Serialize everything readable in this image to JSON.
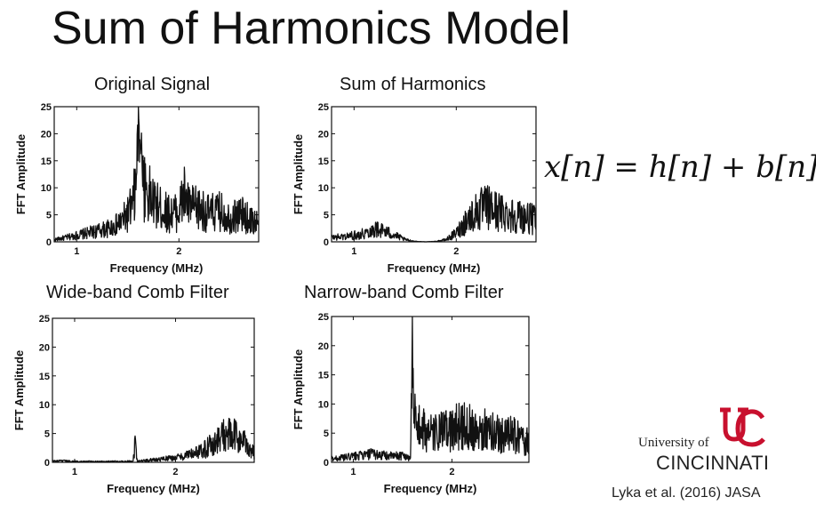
{
  "slide": {
    "title": "Sum of Harmonics Model",
    "equation": {
      "lhs": "x[n]",
      "op1": "=",
      "t1": "h[n]",
      "op2": "+",
      "t2": "b[n]"
    },
    "logo": {
      "university_of": "University of",
      "name": "CINCINNATI",
      "color": "#c8102e"
    },
    "citation": "Lyka et al. (2016) JASA"
  },
  "chart_data": [
    {
      "type": "line",
      "title": "Original Signal",
      "xlabel": "Frequency (MHz)",
      "ylabel": "FFT Amplitude",
      "xlim": [
        0.78,
        2.78
      ],
      "ylim": [
        0,
        25
      ],
      "xticks": [
        1,
        2
      ],
      "yticks": [
        0,
        5,
        10,
        15,
        20,
        25
      ],
      "grid": false,
      "series": [
        {
          "x": [
            0.78,
            0.9,
            1.0,
            1.1,
            1.2,
            1.3,
            1.4,
            1.45,
            1.5,
            1.55,
            1.58,
            1.6,
            1.62,
            1.64,
            1.66,
            1.7,
            1.75,
            1.8,
            1.9,
            2.0,
            2.05,
            2.1,
            2.2,
            2.3,
            2.4,
            2.5,
            2.6,
            2.7,
            2.78
          ],
          "y": [
            0.5,
            1,
            1.5,
            2,
            2.5,
            3,
            4,
            5,
            6.5,
            8.5,
            13,
            25,
            25,
            20,
            14,
            11,
            9,
            8,
            6.5,
            7,
            11,
            8,
            7.5,
            6.5,
            7,
            5.5,
            6.5,
            5,
            4.5
          ]
        }
      ]
    },
    {
      "type": "line",
      "title": "Sum of Harmonics",
      "xlabel": "Frequency (MHz)",
      "ylabel": "FFT Amplitude",
      "xlim": [
        0.78,
        2.78
      ],
      "ylim": [
        0,
        25
      ],
      "xticks": [
        1,
        2
      ],
      "yticks": [
        0,
        5,
        10,
        15,
        20,
        25
      ],
      "grid": false,
      "series": [
        {
          "x": [
            0.78,
            0.9,
            1.0,
            1.1,
            1.2,
            1.3,
            1.4,
            1.5,
            1.6,
            1.7,
            1.8,
            1.9,
            2.0,
            2.1,
            2.2,
            2.3,
            2.4,
            2.5,
            2.6,
            2.7,
            2.78
          ],
          "y": [
            1,
            1.2,
            1.5,
            2,
            3,
            2.5,
            1.5,
            0.5,
            0.1,
            0,
            0.1,
            0.5,
            2,
            5,
            7,
            8,
            7,
            6.5,
            6,
            5.5,
            5
          ]
        }
      ]
    },
    {
      "type": "line",
      "title": "Wide-band Comb Filter",
      "xlabel": "Frequency (MHz)",
      "ylabel": "FFT Amplitude",
      "xlim": [
        0.78,
        2.78
      ],
      "ylim": [
        0,
        25
      ],
      "xticks": [
        1,
        2
      ],
      "yticks": [
        0,
        5,
        10,
        15,
        20,
        25
      ],
      "grid": false,
      "series": [
        {
          "x": [
            0.78,
            0.9,
            1.0,
            1.2,
            1.4,
            1.5,
            1.58,
            1.6,
            1.62,
            1.7,
            1.8,
            1.9,
            2.0,
            2.1,
            2.2,
            2.3,
            2.4,
            2.5,
            2.6,
            2.7,
            2.78
          ],
          "y": [
            0.3,
            0.3,
            0.2,
            0.2,
            0.2,
            0.2,
            0.3,
            4.8,
            0.3,
            0.4,
            0.6,
            0.8,
            1,
            1.5,
            2,
            3,
            4.5,
            6,
            5.5,
            4,
            2
          ]
        }
      ]
    },
    {
      "type": "line",
      "title": "Narrow-band Comb Filter",
      "xlabel": "Frequency (MHz)",
      "ylabel": "FFT Amplitude",
      "xlim": [
        0.78,
        2.78
      ],
      "ylim": [
        0,
        25
      ],
      "xticks": [
        1,
        2
      ],
      "yticks": [
        0,
        5,
        10,
        15,
        20,
        25
      ],
      "grid": false,
      "series": [
        {
          "x": [
            0.78,
            0.9,
            1.0,
            1.1,
            1.2,
            1.3,
            1.4,
            1.5,
            1.58,
            1.6,
            1.61,
            1.62,
            1.64,
            1.7,
            1.8,
            1.9,
            2.0,
            2.1,
            2.2,
            2.3,
            2.4,
            2.5,
            2.6,
            2.7,
            2.78
          ],
          "y": [
            0.8,
            1,
            1.3,
            1.5,
            1.8,
            1.5,
            1.3,
            1.5,
            1,
            25,
            15,
            12,
            8,
            7,
            6,
            6.5,
            7,
            8,
            7.5,
            7,
            6.5,
            6,
            6,
            5,
            4.5
          ]
        }
      ]
    }
  ]
}
